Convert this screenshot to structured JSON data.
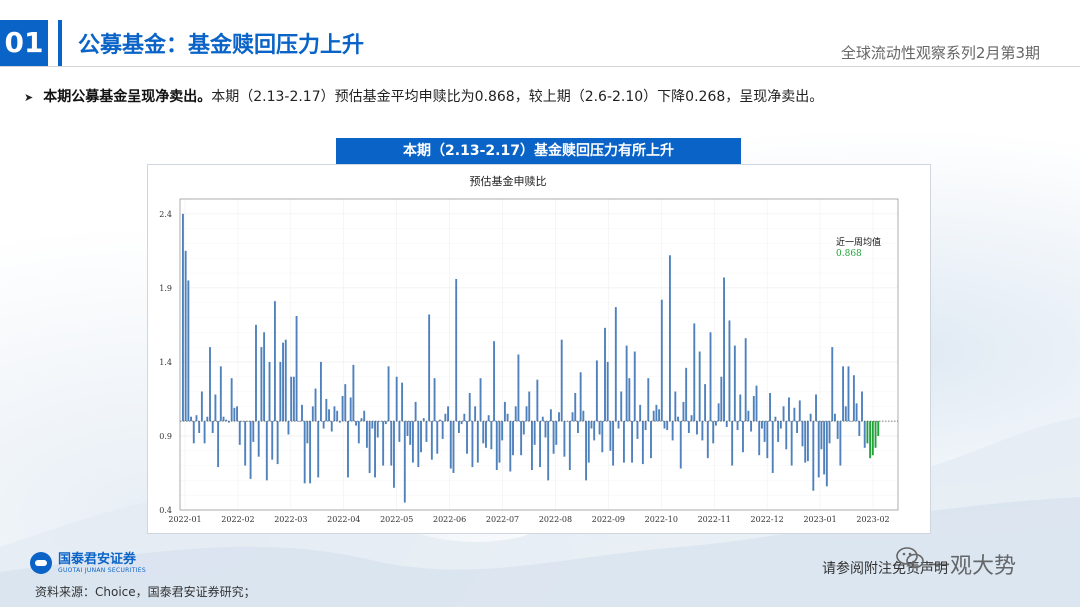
{
  "section": {
    "number": "01",
    "title": "公募基金：基金赎回压力上升",
    "series": "全球流动性观察系列2月第3期"
  },
  "bullet": {
    "bold": "本期公募基金呈现净卖出。",
    "text": "本期（2.13-2.17）预估基金平均申赎比为0.868，较上期（2.6-2.10）下降0.268，呈现净卖出。"
  },
  "chart_header": "本期（2.13-2.17）基金赎回压力有所上升",
  "footer": {
    "source": "资料来源：Choice，国泰君安证券研究；",
    "disclaimer": "请参阅附注免责声明",
    "watermark": "一观大势",
    "logo_cn": "国泰君安证券",
    "logo_en": "GUOTAI JUNAN SECURITIES"
  },
  "colors": {
    "accent": "#0a63c7",
    "bar": "#4f81bd",
    "recent_bar": "#21a33a"
  },
  "chart_data": {
    "type": "bar",
    "title": "预估基金申赎比",
    "xlabel": "",
    "ylabel": "",
    "ylim": [
      0.4,
      2.5
    ],
    "yticks": [
      0.4,
      0.9,
      1.4,
      1.9,
      2.4
    ],
    "xticks": [
      "2022-01",
      "2022-02",
      "2022-03",
      "2022-04",
      "2022-05",
      "2022-06",
      "2022-07",
      "2022-08",
      "2022-09",
      "2022-10",
      "2022-11",
      "2022-12",
      "2023-01",
      "2023-02"
    ],
    "baseline": 1.0,
    "grid": true,
    "annotation": {
      "label": "近一周均值",
      "value": "0.868"
    },
    "values": [
      2.4,
      2.15,
      1.95,
      1.03,
      0.85,
      1.04,
      0.92,
      1.2,
      0.85,
      1.03,
      1.5,
      0.92,
      1.18,
      0.69,
      1.37,
      1.03,
      1.01,
      0.99,
      1.29,
      1.09,
      1.1,
      0.84,
      1.0,
      0.7,
      1.0,
      0.61,
      0.86,
      1.65,
      0.76,
      1.5,
      1.6,
      0.6,
      1.4,
      0.74,
      1.81,
      0.71,
      1.4,
      1.53,
      1.55,
      0.91,
      1.3,
      1.3,
      1.71,
      1.0,
      1.11,
      0.58,
      0.85,
      0.58,
      1.1,
      1.22,
      0.62,
      1.4,
      0.95,
      1.15,
      1.08,
      0.93,
      1.1,
      1.07,
      0.99,
      1.17,
      1.25,
      0.62,
      1.16,
      1.38,
      0.97,
      0.85,
      1.02,
      1.07,
      0.82,
      0.65,
      0.95,
      0.62,
      0.89,
      1.0,
      0.7,
      0.98,
      1.37,
      0.7,
      0.55,
      1.3,
      0.86,
      1.26,
      0.45,
      0.9,
      0.84,
      0.72,
      1.13,
      0.69,
      0.79,
      1.02,
      0.86,
      1.72,
      0.74,
      1.29,
      0.78,
      1.01,
      0.88,
      1.05,
      1.1,
      0.68,
      0.65,
      1.96,
      0.92,
      0.98,
      1.05,
      0.78,
      1.19,
      0.69,
      1.1,
      0.72,
      1.29,
      0.85,
      0.82,
      1.04,
      0.81,
      1.54,
      0.67,
      0.72,
      0.87,
      1.13,
      1.05,
      0.66,
      0.77,
      1.1,
      1.45,
      0.77,
      0.91,
      1.1,
      1.2,
      0.67,
      0.84,
      1.28,
      0.69,
      1.03,
      0.89,
      0.6,
      1.08,
      0.78,
      0.84,
      1.06,
      1.55,
      0.76,
      1.0,
      0.67,
      1.06,
      1.19,
      0.92,
      1.33,
      1.07,
      0.6,
      0.72,
      0.95,
      0.87,
      1.41,
      0.91,
      0.79,
      1.63,
      1.4,
      0.8,
      0.7,
      1.77,
      0.95,
      1.2,
      0.72,
      1.51,
      1.29,
      0.72,
      1.47,
      0.88,
      1.11,
      0.71,
      0.94,
      1.29,
      0.75,
      1.07,
      1.11,
      1.08,
      1.82,
      0.95,
      0.94,
      2.12,
      0.87,
      1.2,
      1.03,
      0.68,
      1.13,
      1.36,
      0.92,
      1.04,
      1.66,
      0.91,
      1.47,
      0.87,
      1.25,
      0.75,
      1.6,
      0.85,
      0.97,
      1.12,
      1.3,
      1.97,
      0.96,
      1.68,
      0.7,
      1.51,
      0.94,
      1.18,
      0.79,
      1.56,
      1.07,
      0.93,
      1.17,
      1.24,
      0.77,
      0.95,
      0.86,
      0.75,
      1.19,
      0.65,
      1.03,
      0.86,
      0.95,
      1.1,
      0.81,
      1.16,
      0.7,
      1.09,
      0.92,
      1.14,
      0.83,
      0.72,
      0.73,
      1.05,
      0.53,
      1.18,
      0.62,
      0.81,
      0.64,
      0.56,
      0.85,
      1.5,
      1.05,
      0.88,
      0.7,
      1.37,
      1.1,
      1.37,
      1.0,
      1.31,
      1.12,
      0.9,
      1.2,
      0.82,
      0.85,
      0.75,
      0.77,
      0.82,
      0.9
    ]
  }
}
